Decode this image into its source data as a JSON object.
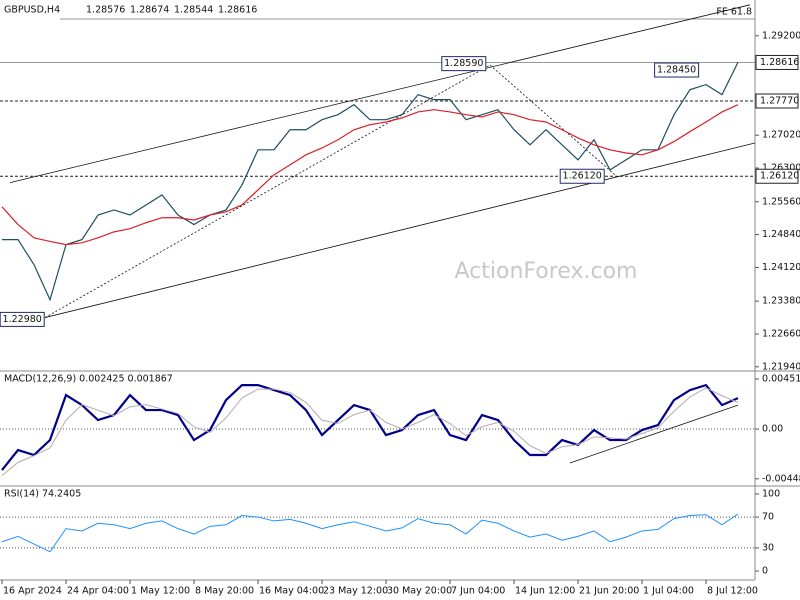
{
  "chart_data": [
    {
      "type": "line",
      "title": "GBPUSD,H4",
      "ohlc": [
        "1.28576",
        "1.28674",
        "1.28544",
        "1.28616"
      ],
      "watermark": "ActionForex.com",
      "categories": [
        "16 Apr 2024",
        null,
        null,
        null,
        "24 Apr 04:00",
        null,
        null,
        null,
        "1 May 12:00",
        null,
        null,
        null,
        "8 May 20:00",
        null,
        null,
        null,
        "16 May 04:00",
        null,
        null,
        null,
        "23 May 12:00",
        null,
        null,
        null,
        "30 May 20:00",
        null,
        null,
        null,
        "7 Jun 04:00",
        null,
        null,
        null,
        "14 Jun 12:00",
        null,
        null,
        null,
        "21 Jun 20:00",
        null,
        null,
        null,
        "1 Jul 04:00",
        null,
        null,
        null,
        "8 Jul 12:00",
        null,
        null
      ],
      "series": [
        {
          "color": "#1f4e5f",
          "width": 1.2,
          "values": [
            1.2473,
            1.2473,
            1.2418,
            1.2341,
            1.2462,
            1.2473,
            1.2527,
            1.2538,
            1.2527,
            1.2549,
            1.2571,
            1.2527,
            1.2506,
            1.2527,
            1.2538,
            1.2593,
            1.267,
            1.267,
            1.2714,
            1.2714,
            1.2736,
            1.2747,
            1.2769,
            1.2736,
            1.2736,
            1.2747,
            1.2791,
            1.278,
            1.278,
            1.2736,
            1.2747,
            1.2758,
            1.2714,
            1.2681,
            1.2714,
            1.2681,
            1.2648,
            1.2692,
            1.2626,
            1.2648,
            1.267,
            1.267,
            1.2747,
            1.2802,
            1.2813,
            1.2791,
            1.2862
          ]
        },
        {
          "color": "#d9202a",
          "width": 1.2,
          "values": [
            1.2545,
            1.2506,
            1.2477,
            1.2469,
            1.2462,
            1.2466,
            1.2477,
            1.249,
            1.2497,
            1.251,
            1.2521,
            1.2521,
            1.2516,
            1.2527,
            1.2534,
            1.2549,
            1.2582,
            1.2615,
            1.2637,
            1.2659,
            1.2674,
            1.2692,
            1.2714,
            1.2725,
            1.2731,
            1.274,
            1.2753,
            1.2758,
            1.2753,
            1.2747,
            1.2742,
            1.2753,
            1.2747,
            1.2736,
            1.2731,
            1.2714,
            1.2696,
            1.2681,
            1.267,
            1.2663,
            1.2659,
            1.267,
            1.2688,
            1.271,
            1.2731,
            1.2753,
            1.2769
          ]
        }
      ],
      "ylim": [
        1.2187,
        1.2992
      ],
      "yticks": [
        {
          "value": 1.292,
          "label": "1.29200"
        },
        {
          "value": 1.2702,
          "label": "1.27020"
        },
        {
          "value": 1.263,
          "label": "1.26300"
        },
        {
          "value": 1.2556,
          "label": "1.25560"
        },
        {
          "value": 1.2484,
          "label": "1.24840"
        },
        {
          "value": 1.2412,
          "label": "1.24120"
        },
        {
          "value": 1.2338,
          "label": "1.23380"
        },
        {
          "value": 1.2266,
          "label": "1.22660"
        },
        {
          "value": 1.2194,
          "label": "1.21940"
        }
      ],
      "levels": [
        {
          "value": 1.2957,
          "label": "FE 61.8",
          "style": "fe"
        },
        {
          "value": 1.28616,
          "label": "1.28616",
          "style": "solid"
        },
        {
          "value": 1.2777,
          "label": "1.27770",
          "style": "dashed"
        },
        {
          "value": 1.2612,
          "label": "1.26120",
          "style": "dashed"
        }
      ],
      "trendlines": [
        {
          "x": [
            0.5,
            46.75
          ],
          "y": [
            1.2598,
            1.2988
          ],
          "style": "solid"
        },
        {
          "x": [
            2.69,
            47.06
          ],
          "y": [
            1.2302,
            1.2685
          ],
          "style": "solid"
        },
        {
          "x": [
            2.69,
            30.5
          ],
          "y": [
            1.2302,
            1.2856
          ],
          "style": "dashed"
        },
        {
          "x": [
            30.5,
            38.31
          ],
          "y": [
            1.2856,
            1.2615
          ],
          "style": "dashed"
        }
      ],
      "annotations": [
        {
          "x": 30.3,
          "value": 1.2859,
          "label": "1.28590"
        },
        {
          "x": 43.6,
          "value": 1.2845,
          "label": "1.28450"
        },
        {
          "x": 37.7,
          "value": 1.2612,
          "label": "1.26120"
        },
        {
          "x": 2.7,
          "value": 1.2298,
          "label": "1.22980"
        }
      ]
    },
    {
      "type": "line",
      "title": "MACD(12,26,9) 0.002425 0.001867",
      "series": [
        {
          "color": "#00008b",
          "width": 2.2,
          "values": [
            -0.00369,
            -0.00189,
            -0.00234,
            -0.00099,
            0.00306,
            0.00216,
            0.00081,
            0.00126,
            0.00306,
            0.00171,
            0.00171,
            0.00126,
            -0.00099,
            -9e-05,
            0.00261,
            0.00396,
            0.00396,
            0.00351,
            0.00306,
            0.00171,
            -0.00054,
            0.00081,
            0.00216,
            0.00171,
            -0.00054,
            -9e-05,
            0.00126,
            0.00171,
            -0.00054,
            -0.00099,
            0.00126,
            0.00081,
            -0.00099,
            -0.00234,
            -0.00234,
            -0.00099,
            -0.00144,
            -9e-05,
            -0.00099,
            -0.00099,
            -9e-05,
            0.00036,
            0.00261,
            0.00351,
            0.00396,
            0.00216,
            0.00279
          ]
        },
        {
          "color": "#b8a8b0",
          "width": 1,
          "values": [
            -0.0042,
            -0.003,
            -0.0024,
            -0.0017,
            0.0008,
            0.0022,
            0.0017,
            0.0012,
            0.002,
            0.0022,
            0.0018,
            0.0014,
            0.0002,
            -0.0003,
            0.001,
            0.0028,
            0.0036,
            0.0036,
            0.0033,
            0.0024,
            0.0008,
            0.0005,
            0.0013,
            0.0017,
            0.0006,
            0.0,
            0.0006,
            0.0013,
            0.0005,
            -0.0006,
            0.0002,
            0.0006,
            -0.0002,
            -0.0015,
            -0.0022,
            -0.0016,
            -0.0014,
            -0.0007,
            -0.0008,
            -0.0009,
            -0.0004,
            0.0001,
            0.0016,
            0.0029,
            0.0037,
            0.003,
            0.0024
          ]
        }
      ],
      "ylim": [
        -0.00504,
        0.00514
      ],
      "yticks": [
        {
          "value": 0.00451,
          "label": "0.00451"
        },
        {
          "value": 0,
          "label": "0.00"
        },
        {
          "value": -0.004483,
          "label": "-0.004483"
        }
      ],
      "levels": [
        0
      ],
      "trendlines": [
        {
          "x": [
            35.5,
            46
          ],
          "y": [
            -0.00306,
            0.00216
          ],
          "style": "solid"
        }
      ]
    },
    {
      "type": "line",
      "title": "RSI(14) 74.2405",
      "series": [
        {
          "color": "#1e90ff",
          "width": 1,
          "values": [
            38,
            45,
            35,
            25,
            55,
            52,
            62,
            60,
            55,
            62,
            65,
            55,
            48,
            58,
            60,
            72,
            70,
            65,
            67,
            62,
            55,
            60,
            64,
            58,
            52,
            56,
            68,
            62,
            60,
            48,
            66,
            62,
            52,
            44,
            48,
            40,
            45,
            52,
            38,
            44,
            52,
            54,
            68,
            72,
            73,
            60,
            74
          ]
        }
      ],
      "ylim": [
        -10.3,
        109
      ],
      "yticks": [
        100,
        70,
        30,
        0
      ],
      "levels": [
        70,
        30
      ]
    }
  ]
}
